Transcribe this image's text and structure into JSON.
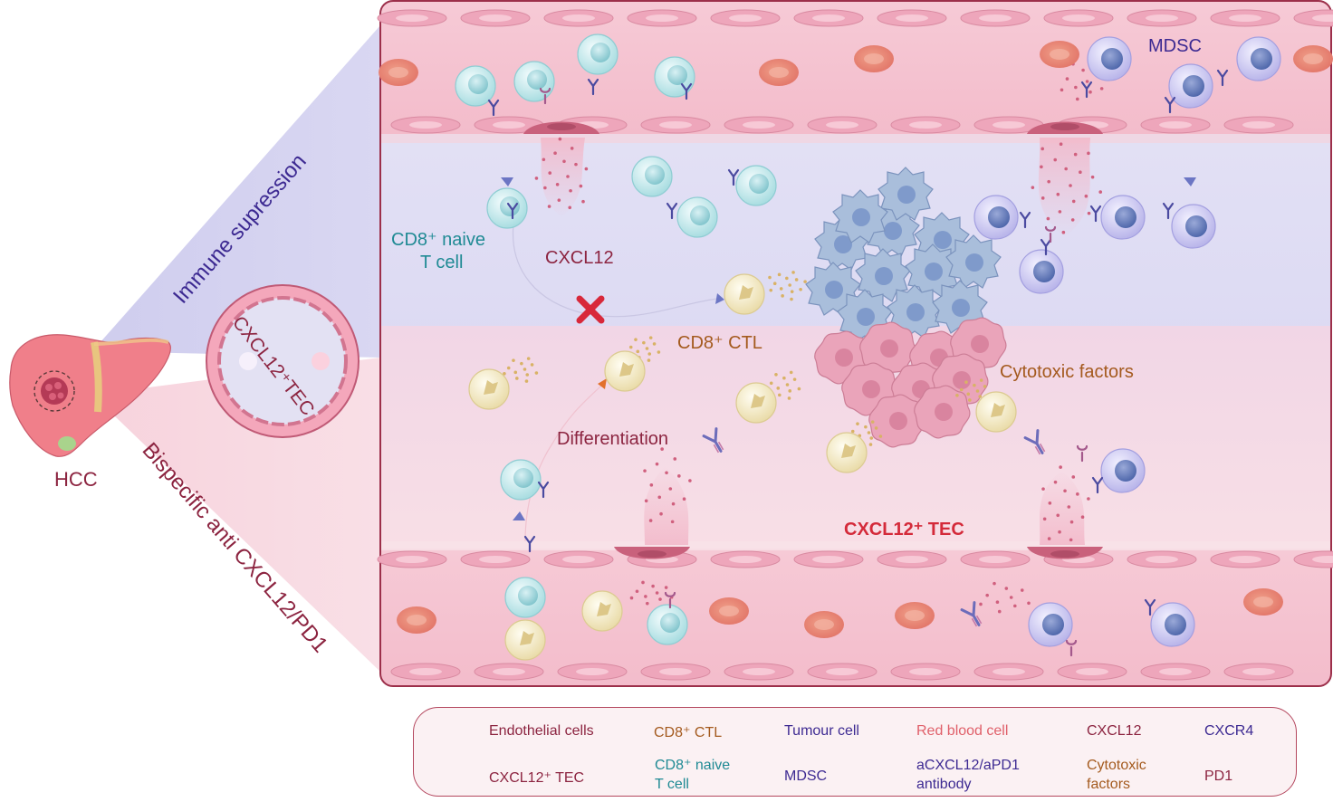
{
  "left_panel": {
    "organ_label": "HCC",
    "vessel_label": "CXCL12⁺TEC",
    "upper_arm_label": "Immune supression",
    "lower_arm_label": "Bispecific anti CXCL12/PD1"
  },
  "main_panel": {
    "mdsc_label": "MDSC",
    "naive_label_line1": "CD8⁺ naive",
    "naive_label_line2": "T cell",
    "cxcl12_label": "CXCL12",
    "ctl_label": "CD8⁺ CTL",
    "cytotoxic_label": "Cytotoxic factors",
    "differentiation_label": "Differentiation",
    "tec_label": "CXCL12⁺ TEC"
  },
  "legend": {
    "items": [
      {
        "label": "Endothelial cells",
        "icon": "endothelial-cell-icon"
      },
      {
        "label": "CD8⁺ CTL",
        "icon": "cd8-ctl-icon"
      },
      {
        "label": "Tumour cell",
        "icon": "tumour-cell-icon"
      },
      {
        "label": "Red blood cell",
        "icon": "red-blood-cell-icon"
      },
      {
        "label": "CXCL12",
        "icon": "cxcl12-dots-icon"
      },
      {
        "label": "CXCR4",
        "icon": "cxcr4-receptor-icon"
      },
      {
        "label": "CXCL12⁺ TEC",
        "icon": "tec-cell-icon"
      },
      {
        "label": "CD8⁺ naive\nT cell",
        "line1": "CD8⁺ naive",
        "line2": "T cell",
        "icon": "naive-t-cell-icon"
      },
      {
        "label": "MDSC",
        "icon": "mdsc-icon"
      },
      {
        "label": "aCXCL12/aPD1\nantibody",
        "line1": "aCXCL12/aPD1",
        "line2": "antibody",
        "icon": "antibody-icon"
      },
      {
        "label": "Cytotoxic\nfactors",
        "line1": "Cytotoxic",
        "line2": "factors",
        "icon": "cytotoxic-dots-icon"
      },
      {
        "label": "PD1",
        "icon": "pd1-receptor-icon"
      }
    ]
  },
  "colors": {
    "panel_border": "#9c2f4a",
    "upper_bg": "#dcd9f0",
    "lower_bg": "#f7dbe4",
    "vessel_wall": "#f0b9c9",
    "naive_text": "#1f8a94",
    "ctl_text": "#a45a1e",
    "maroon_text": "#8c2440",
    "purple_text": "#3d2a92",
    "tec_text": "#d42a3a",
    "block_x": "#d8283a"
  }
}
